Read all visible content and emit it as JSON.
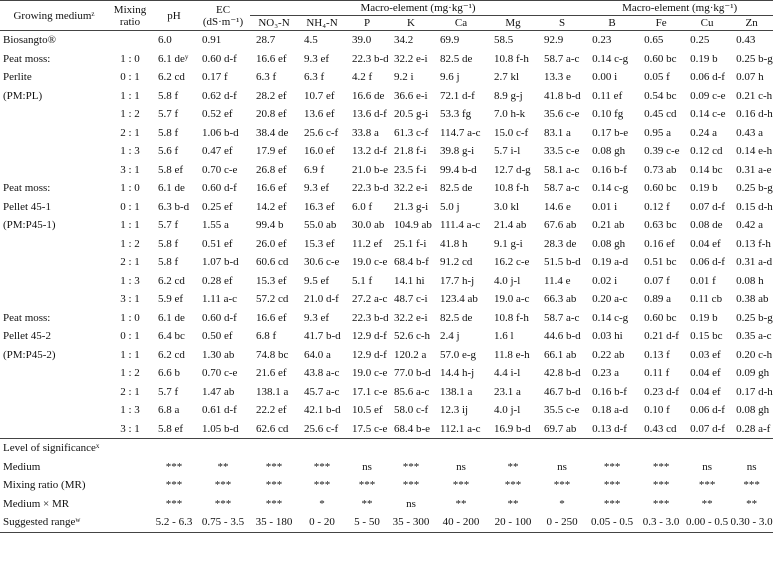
{
  "columns": {
    "medium": {
      "text": "Growing medium",
      "sup": "z"
    },
    "ratio": "Mixing ratio",
    "ph": "pH",
    "ec": "EC (dS·m⁻¹)",
    "macro_group_1": "Macro-element (mg·kg⁻¹)",
    "macro_group_2": "Macro-element (mg·kg⁻¹)",
    "elements_1": [
      "NO₃-N",
      "NH₄-N",
      "P",
      "K",
      "Ca",
      "Mg",
      "S"
    ],
    "elements_2": [
      "B",
      "Fe",
      "Cu",
      "Zn"
    ]
  },
  "reference_row": {
    "medium": "Biosangto®",
    "values": [
      "6.0",
      "0.91",
      "28.7",
      "4.5",
      "39.0",
      "34.2",
      "69.9",
      "58.5",
      "92.9",
      "0.23",
      "0.65",
      "0.25",
      "0.43"
    ]
  },
  "groups": [
    {
      "medium_lines": [
        "Peat moss:",
        "Perlite",
        "(PM:PL)"
      ],
      "rows": [
        {
          "ratio": "1 : 0",
          "values": [
            {
              "text": "6.1 de",
              "sup": "y"
            },
            "0.60 d-f",
            "16.6 ef",
            "9.3 ef",
            "22.3 b-d",
            "32.2 e-i",
            "82.5 de",
            "10.8 f-h",
            "58.7 a-c",
            "0.14 c-g",
            "0.60 bc",
            "0.19 b",
            "0.25 b-g"
          ]
        },
        {
          "ratio": "0 : 1",
          "values": [
            "6.2 cd",
            "0.17 f",
            "6.3 f",
            "6.3 f",
            "4.2 f",
            "9.2 i",
            "9.6 j",
            "2.7 kl",
            "13.3 e",
            "0.00 i",
            "0.05 f",
            "0.06 d-f",
            "0.07 h"
          ]
        },
        {
          "ratio": "1 : 1",
          "values": [
            "5.8 f",
            "0.62 d-f",
            "28.2 ef",
            "10.7 ef",
            "16.6 de",
            "36.6 e-i",
            "72.1 d-f",
            "8.9 g-j",
            "41.8 b-d",
            "0.11 ef",
            "0.54 bc",
            "0.09 c-e",
            "0.21 c-h"
          ]
        },
        {
          "ratio": "1 : 2",
          "values": [
            "5.7 f",
            "0.52 ef",
            "20.8 ef",
            "13.6 ef",
            "13.6 d-f",
            "20.5 g-i",
            "53.3 fg",
            "7.0 h-k",
            "35.6 c-e",
            "0.10 fg",
            "0.45 cd",
            "0.14 c-e",
            "0.16 d-h"
          ]
        },
        {
          "ratio": "2 : 1",
          "values": [
            "5.8 f",
            "1.06 b-d",
            "38.4 de",
            "25.6 c-f",
            "33.8 a",
            "61.3 c-f",
            "114.7 a-c",
            "15.0 c-f",
            "83.1 a",
            "0.17 b-e",
            "0.95 a",
            "0.24 a",
            "0.43 a"
          ]
        },
        {
          "ratio": "1 : 3",
          "values": [
            "5.6 f",
            "0.47 ef",
            "17.9 ef",
            "16.0 ef",
            "13.2 d-f",
            "21.8 f-i",
            "39.8 g-i",
            "5.7 i-l",
            "33.5 c-e",
            "0.08 gh",
            "0.39 c-e",
            "0.12 cd",
            "0.14 e-h"
          ]
        },
        {
          "ratio": "3 : 1",
          "values": [
            "5.8 ef",
            "0.70 c-e",
            "26.8 ef",
            "6.9 f",
            "21.0 b-e",
            "23.5 f-i",
            "99.4 b-d",
            "12.7 d-g",
            "58.1 a-c",
            "0.16 b-f",
            "0.73 ab",
            "0.14 bc",
            "0.31 a-e"
          ]
        }
      ]
    },
    {
      "medium_lines": [
        "Peat moss:",
        "Pellet 45-1",
        "(PM:P45-1)"
      ],
      "rows": [
        {
          "ratio": "1 : 0",
          "values": [
            "6.1 de",
            "0.60 d-f",
            "16.6 ef",
            "9.3 ef",
            "22.3 b-d",
            "32.2 e-i",
            "82.5 de",
            "10.8 f-h",
            "58.7 a-c",
            "0.14 c-g",
            "0.60 bc",
            "0.19 b",
            "0.25 b-g"
          ]
        },
        {
          "ratio": "0 : 1",
          "values": [
            "6.3 b-d",
            "0.25 ef",
            "14.2 ef",
            "16.3 ef",
            "6.0 f",
            "21.3 g-i",
            "5.0 j",
            "3.0 kl",
            "14.6 e",
            "0.01 i",
            "0.12 f",
            "0.07 d-f",
            "0.15 d-h"
          ]
        },
        {
          "ratio": "1 : 1",
          "values": [
            "5.7 f",
            "1.55 a",
            "99.4 b",
            "55.0 ab",
            "30.0 ab",
            "104.9 ab",
            "111.4 a-c",
            "21.4 ab",
            "67.6 ab",
            "0.21 ab",
            "0.63 bc",
            "0.08 de",
            "0.42 a"
          ]
        },
        {
          "ratio": "1 : 2",
          "values": [
            "5.8 f",
            "0.51 ef",
            "26.0 ef",
            "15.3 ef",
            "11.2 ef",
            "25.1 f-i",
            "41.8 h",
            "9.1 g-i",
            "28.3 de",
            "0.08 gh",
            "0.16 ef",
            "0.04 ef",
            "0.13 f-h"
          ]
        },
        {
          "ratio": "2 : 1",
          "values": [
            "5.8 f",
            "1.07 b-d",
            "60.6 cd",
            "30.6 c-e",
            "19.0 c-e",
            "68.4 b-f",
            "91.2 cd",
            "16.2 c-e",
            "51.5 b-d",
            "0.19 a-d",
            "0.51 bc",
            "0.06 d-f",
            "0.31 a-d"
          ]
        },
        {
          "ratio": "1 : 3",
          "values": [
            "6.2 cd",
            "0.28 ef",
            "15.3 ef",
            "9.5 ef",
            "5.1 f",
            "14.1 hi",
            "17.7 h-j",
            "4.0 j-l",
            "11.4 e",
            "0.02 i",
            "0.07 f",
            "0.01 f",
            "0.08 h"
          ]
        },
        {
          "ratio": "3 : 1",
          "values": [
            "5.9 ef",
            "1.11 a-c",
            "57.2 cd",
            "21.0 d-f",
            "27.2 a-c",
            "48.7 c-i",
            "123.4 ab",
            "19.0 a-c",
            "66.3 ab",
            "0.20 a-c",
            "0.89 a",
            "0.11 cb",
            "0.38 ab"
          ]
        }
      ]
    },
    {
      "medium_lines": [
        "Peat moss:",
        "Pellet 45-2",
        "(PM:P45-2)"
      ],
      "rows": [
        {
          "ratio": "1 : 0",
          "values": [
            "6.1 de",
            "0.60 d-f",
            "16.6 ef",
            "9.3 ef",
            "22.3 b-d",
            "32.2 e-i",
            "82.5 de",
            "10.8 f-h",
            "58.7 a-c",
            "0.14 c-g",
            "0.60 bc",
            "0.19 b",
            "0.25 b-g"
          ]
        },
        {
          "ratio": "0 : 1",
          "values": [
            "6.4 bc",
            "0.50 ef",
            "6.8 f",
            "41.7 b-d",
            "12.9 d-f",
            "52.6 c-h",
            "2.4 j",
            "1.6 l",
            "44.6 b-d",
            "0.03 hi",
            "0.21 d-f",
            "0.15 bc",
            "0.35 a-c"
          ]
        },
        {
          "ratio": "1 : 1",
          "values": [
            "6.2 cd",
            "1.30 ab",
            "74.8 bc",
            "64.0 a",
            "12.9 d-f",
            "120.2 a",
            "57.0 e-g",
            "11.8 e-h",
            "66.1 ab",
            "0.22 ab",
            "0.13 f",
            "0.03 ef",
            "0.20 c-h"
          ]
        },
        {
          "ratio": "1 : 2",
          "values": [
            "6.6 b",
            "0.70 c-e",
            "21.6 ef",
            "43.8 a-c",
            "19.0 c-e",
            "77.0 b-d",
            "14.4 h-j",
            "4.4 i-l",
            "42.8 b-d",
            "0.23 a",
            "0.11 f",
            "0.04 ef",
            "0.09 gh"
          ]
        },
        {
          "ratio": "2 : 1",
          "values": [
            "5.7 f",
            "1.47 ab",
            "138.1 a",
            "45.7 a-c",
            "17.1 c-e",
            "85.6 a-c",
            "138.1 a",
            "23.1 a",
            "46.7 b-d",
            "0.16 b-f",
            "0.23 d-f",
            "0.04 ef",
            "0.17 d-h"
          ]
        },
        {
          "ratio": "1 : 3",
          "values": [
            "6.8 a",
            "0.61 d-f",
            "22.2 ef",
            "42.1 b-d",
            "10.5 ef",
            "58.0 c-f",
            "12.3 ij",
            "4.0 j-l",
            "35.5 c-e",
            "0.18 a-d",
            "0.10 f",
            "0.06 d-f",
            "0.08 gh"
          ]
        },
        {
          "ratio": "3 : 1",
          "values": [
            "5.8 ef",
            "1.05 b-d",
            "62.6 cd",
            "25.6 c-f",
            "17.5 c-e",
            "68.4 b-e",
            "112.1 a-c",
            "16.9 b-d",
            "69.7 ab",
            "0.13 d-f",
            "0.43 cd",
            "0.07 d-f",
            "0.28 a-f"
          ]
        }
      ]
    }
  ],
  "significance": {
    "title": {
      "text": "Level of significance",
      "sup": "x"
    },
    "rows": [
      {
        "label": "Medium",
        "values": [
          "***",
          "**",
          "***",
          "***",
          "ns",
          "***",
          "ns",
          "**",
          "ns",
          "***",
          "***",
          "ns",
          "ns"
        ]
      },
      {
        "label": "Mixing ratio (MR)",
        "values": [
          "***",
          "***",
          "***",
          "***",
          "***",
          "***",
          "***",
          "***",
          "***",
          "***",
          "***",
          "***",
          "***"
        ]
      },
      {
        "label": "Medium × MR",
        "values": [
          "***",
          "***",
          "***",
          "*",
          "**",
          "ns",
          "**",
          "**",
          "*",
          "***",
          "***",
          "**",
          "**"
        ]
      }
    ]
  },
  "suggested_range": {
    "label": {
      "text": "Suggested range",
      "sup": "w"
    },
    "values": [
      "5.2 - 6.3",
      "0.75 - 3.5",
      "35 - 180",
      "0 - 20",
      "5 - 50",
      "35 - 300",
      "40 - 200",
      "20 - 100",
      "0 - 250",
      "0.05 - 0.5",
      "0.3 - 3.0",
      "0.00 - 0.5",
      "0.30 - 3.0"
    ]
  }
}
